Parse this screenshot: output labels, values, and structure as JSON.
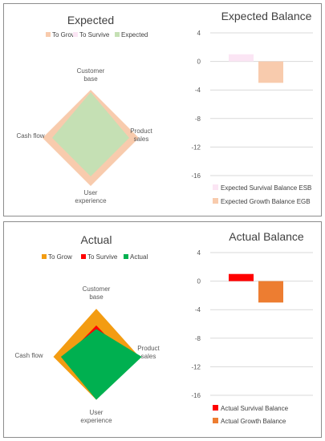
{
  "chart_data": [
    {
      "type": "radar",
      "title": "Expected",
      "axes": [
        "Customer base",
        "Product sales",
        "User experience",
        "Cash flow"
      ],
      "axis_labels": [
        [
          "Customer",
          "base"
        ],
        [
          "Product",
          "sales"
        ],
        [
          "User",
          "experience"
        ],
        [
          "Cash flow"
        ]
      ],
      "max": 1.0,
      "series": [
        {
          "name": "To Grow",
          "color": "#f8cbad",
          "values": [
            1.0,
            1.0,
            1.0,
            1.0
          ]
        },
        {
          "name": "To Survive",
          "color": "#fbe5f4",
          "values": [
            0.5,
            0.5,
            0.5,
            0.5
          ]
        },
        {
          "name": "Expected",
          "color": "#c5e0b4",
          "values": [
            0.95,
            0.8,
            0.8,
            0.8
          ]
        }
      ]
    },
    {
      "type": "bar",
      "title": "Expected Balance",
      "series": [
        {
          "name": "Expected Survival Balance ESB",
          "color": "#fbe5f4",
          "value": 1
        },
        {
          "name": "Expected Growth Balance EGB",
          "color": "#f8cbad",
          "value": -3
        }
      ],
      "yticks": [
        4,
        0,
        -4,
        -8,
        -12,
        -16
      ],
      "ylim": [
        -16,
        4
      ]
    },
    {
      "type": "radar",
      "title": "Actual",
      "axes": [
        "Customer base",
        "Product sales",
        "User experience",
        "Cash flow"
      ],
      "axis_labels": [
        [
          "Customer",
          "base"
        ],
        [
          "Product",
          "sales"
        ],
        [
          "User",
          "experience"
        ],
        [
          "Cash flow"
        ]
      ],
      "max": 1.0,
      "series": [
        {
          "name": "To Grow",
          "color": "#ed7d31",
          "values": [
            0.95,
            0.85,
            0.85,
            0.85
          ]
        },
        {
          "name": "To Survive",
          "color": "#ff0000",
          "values": [
            0.62,
            0.6,
            0.6,
            0.6
          ]
        },
        {
          "name": "Actual",
          "color": "#00b050",
          "values": [
            0.55,
            0.9,
            0.85,
            0.7
          ]
        }
      ],
      "fill_colors": {
        "To Grow": "#f39c12"
      }
    },
    {
      "type": "bar",
      "title": "Actual Balance",
      "series": [
        {
          "name": "Actual Survival Balance",
          "color": "#ff0000",
          "value": 1
        },
        {
          "name": "Actual Growth Balance",
          "color": "#ed7d31",
          "value": -3
        }
      ],
      "yticks": [
        4,
        0,
        -4,
        -8,
        -12,
        -16
      ],
      "ylim": [
        -16,
        4
      ]
    }
  ]
}
